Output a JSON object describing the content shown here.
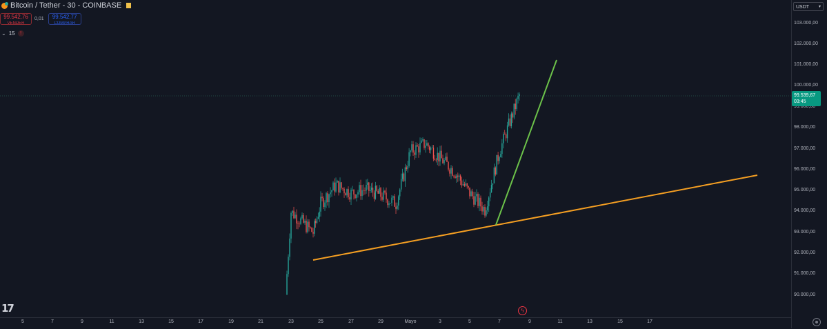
{
  "header": {
    "symbol_title": "Bitcoin / Tether - 30 - COINBASE",
    "sell_price": "99.542,76",
    "sell_label": "VENDER",
    "spread": "0,01",
    "buy_price": "99.542,77",
    "buy_label": "COMPRAR",
    "interval_indicator": "15",
    "alert_badge": "!"
  },
  "price_axis": {
    "currency": "USDT",
    "ticks": [
      "103.000,00",
      "102.000,00",
      "101.000,00",
      "100.000,00",
      "99.000,00",
      "98.000,00",
      "97.000,00",
      "96.000,00",
      "95.000,00",
      "94.000,00",
      "93.000,00",
      "92.000,00",
      "91.000,00",
      "90.000,00"
    ],
    "last_price": "99.539,67",
    "countdown": "03:45"
  },
  "time_axis": {
    "ticks": [
      "5",
      "7",
      "9",
      "11",
      "13",
      "15",
      "17",
      "19",
      "21",
      "23",
      "25",
      "27",
      "29",
      "Mayo",
      "3",
      "5",
      "7",
      "9",
      "11",
      "13",
      "15",
      "17"
    ]
  },
  "colors": {
    "background": "#131722",
    "up_candle": "#26a69a",
    "down_candle": "#ef5350",
    "support_line": "#f59f22",
    "trend_line": "#6cc24a",
    "last_price_bg": "#089981"
  },
  "chart_data": {
    "type": "candlestick",
    "title": "Bitcoin / Tether - 30 - COINBASE",
    "ylim": [
      89700,
      103300
    ],
    "x": [
      "Apr 22",
      "Apr 23",
      "Apr 24",
      "Apr 25",
      "Apr 26",
      "Apr 27",
      "Apr 28",
      "Apr 29",
      "Apr 30",
      "May 1",
      "May 2",
      "May 3",
      "May 4",
      "May 5",
      "May 6",
      "May 7",
      "May 8"
    ],
    "close": [
      91900,
      93900,
      92900,
      94300,
      95200,
      94800,
      95000,
      94700,
      94300,
      96800,
      97200,
      96500,
      95800,
      94800,
      94000,
      96800,
      99540
    ],
    "last_price": 99539.67,
    "annotations": [
      {
        "type": "support_line",
        "color": "orange",
        "from": [
          "Apr 24",
          91700
        ],
        "to": [
          "May 18",
          95700
        ]
      },
      {
        "type": "trend_line",
        "color": "green",
        "from": [
          "May 7",
          93300
        ],
        "to": [
          "May 9",
          101200
        ]
      }
    ]
  }
}
